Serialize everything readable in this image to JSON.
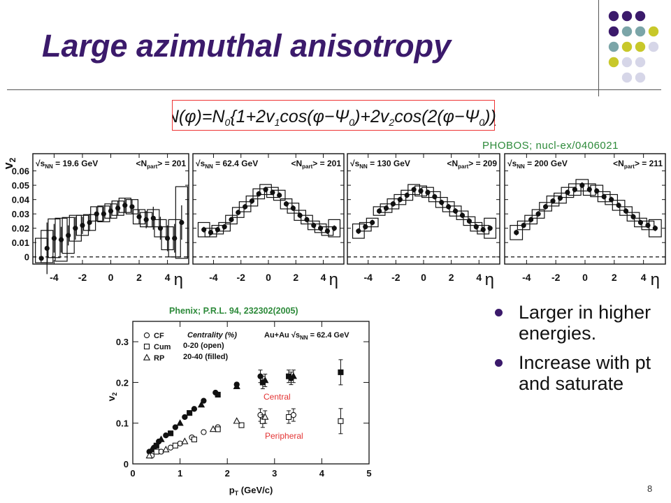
{
  "slide": {
    "title": "Large azimuthal anisotropy",
    "page_number": "8",
    "formula": {
      "parts": [
        "N(φ)=N",
        "0",
        "{1+2v",
        "1",
        "cos(φ−Ψ",
        "0",
        ")+2v",
        "2",
        "cos(2(φ−Ψ",
        "0",
        "))}"
      ]
    },
    "phobos_ref": "PHOBOS; nucl-ex/0406021",
    "phenix_ref": "Phenix; P.R.L. 94, 232302(2005)",
    "bullets": [
      "Larger in higher energies.",
      "Increase with pt and saturate"
    ],
    "colors": {
      "title": "#3b1a6b",
      "ref_green": "#2d8a3a",
      "formula_border": "#ee3333",
      "annotation_red": "#e33333",
      "bullet": "#3b1a6b",
      "deco_purple": "#3b1a6b",
      "deco_teal": "#7ba5a8",
      "deco_yellow": "#c8c82a",
      "deco_lavender": "#d6d6e8"
    }
  },
  "chart_data": [
    {
      "type": "scatter",
      "panel_group": "PHOBOS v2 vs eta",
      "ylabel": "v",
      "ylabel_sub": "2",
      "xlabel": "η",
      "ylim": [
        -0.005,
        0.072
      ],
      "xlim": [
        -5.5,
        5.5
      ],
      "yticks": [
        "0",
        "0.01",
        "0.02",
        "0.03",
        "0.04",
        "0.05",
        "0.06"
      ],
      "xticks": [
        "-4",
        "-2",
        "0",
        "2",
        "4"
      ],
      "panels": [
        {
          "energy_label": "√s",
          "energy_sub": "NN",
          "energy_value": " = 19.6 GeV",
          "npart_label": "<N",
          "npart_sub": "part",
          "npart_value": "> = 201",
          "points": [
            {
              "x": -4.9,
              "y": -0.001,
              "box": 0.028,
              "err": 0.001
            },
            {
              "x": -4.5,
              "y": 0.006,
              "box": 0.025,
              "err": 0.018
            },
            {
              "x": -4.0,
              "y": 0.013,
              "box": 0.027,
              "err": 0.01
            },
            {
              "x": -3.5,
              "y": 0.012,
              "box": 0.03,
              "err": 0.009
            },
            {
              "x": -3.0,
              "y": 0.015,
              "box": 0.025,
              "err": 0.007
            },
            {
              "x": -2.5,
              "y": 0.02,
              "box": 0.018,
              "err": 0.008
            },
            {
              "x": -2.0,
              "y": 0.022,
              "box": 0.014,
              "err": 0.006
            },
            {
              "x": -1.5,
              "y": 0.024,
              "box": 0.011,
              "err": 0.006
            },
            {
              "x": -1.0,
              "y": 0.03,
              "box": 0.01,
              "err": 0.005
            },
            {
              "x": -0.5,
              "y": 0.03,
              "box": 0.011,
              "err": 0.005
            },
            {
              "x": 0.0,
              "y": 0.032,
              "box": 0.01,
              "err": 0.005
            },
            {
              "x": 0.5,
              "y": 0.034,
              "box": 0.01,
              "err": 0.005
            },
            {
              "x": 1.0,
              "y": 0.036,
              "box": 0.01,
              "err": 0.005
            },
            {
              "x": 1.5,
              "y": 0.035,
              "box": 0.01,
              "err": 0.005
            },
            {
              "x": 2.0,
              "y": 0.028,
              "box": 0.01,
              "err": 0.005
            },
            {
              "x": 2.5,
              "y": 0.026,
              "box": 0.01,
              "err": 0.006
            },
            {
              "x": 3.0,
              "y": 0.027,
              "box": 0.012,
              "err": 0.008
            },
            {
              "x": 3.5,
              "y": 0.02,
              "box": 0.012,
              "err": 0.008
            },
            {
              "x": 4.0,
              "y": 0.013,
              "box": 0.016,
              "err": 0.009
            },
            {
              "x": 4.5,
              "y": 0.013,
              "box": 0.026,
              "err": 0.01
            },
            {
              "x": 5.0,
              "y": 0.024,
              "box": 0.05,
              "err": 0.012
            }
          ]
        },
        {
          "energy_label": "√s",
          "energy_sub": "NN",
          "energy_value": " = 62.4 GeV",
          "npart_label": "<N",
          "npart_sub": "part",
          "npart_value": "> = 201",
          "points": [
            {
              "x": -4.7,
              "y": 0.019,
              "box": 0.01,
              "err": 0.002
            },
            {
              "x": -4.2,
              "y": 0.017,
              "box": 0.006,
              "err": 0.002
            },
            {
              "x": -3.7,
              "y": 0.019,
              "box": 0.006,
              "err": 0.002
            },
            {
              "x": -3.2,
              "y": 0.021,
              "box": 0.006,
              "err": 0.002
            },
            {
              "x": -2.7,
              "y": 0.026,
              "box": 0.006,
              "err": 0.002
            },
            {
              "x": -2.2,
              "y": 0.031,
              "box": 0.007,
              "err": 0.002
            },
            {
              "x": -1.7,
              "y": 0.035,
              "box": 0.007,
              "err": 0.002
            },
            {
              "x": -1.2,
              "y": 0.039,
              "box": 0.007,
              "err": 0.002
            },
            {
              "x": -0.7,
              "y": 0.044,
              "box": 0.007,
              "err": 0.002
            },
            {
              "x": -0.2,
              "y": 0.047,
              "box": 0.007,
              "err": 0.002
            },
            {
              "x": 0.3,
              "y": 0.045,
              "box": 0.007,
              "err": 0.002
            },
            {
              "x": 0.8,
              "y": 0.043,
              "box": 0.007,
              "err": 0.002
            },
            {
              "x": 1.3,
              "y": 0.037,
              "box": 0.007,
              "err": 0.002
            },
            {
              "x": 1.8,
              "y": 0.034,
              "box": 0.007,
              "err": 0.002
            },
            {
              "x": 2.3,
              "y": 0.029,
              "box": 0.007,
              "err": 0.002
            },
            {
              "x": 2.8,
              "y": 0.026,
              "box": 0.006,
              "err": 0.002
            },
            {
              "x": 3.3,
              "y": 0.022,
              "box": 0.006,
              "err": 0.002
            },
            {
              "x": 3.8,
              "y": 0.02,
              "box": 0.006,
              "err": 0.002
            },
            {
              "x": 4.3,
              "y": 0.018,
              "box": 0.006,
              "err": 0.002
            },
            {
              "x": 4.8,
              "y": 0.02,
              "box": 0.012,
              "err": 0.002
            }
          ]
        },
        {
          "energy_label": "√s",
          "energy_sub": "NN",
          "energy_value": " = 130 GeV",
          "npart_label": "<N",
          "npart_sub": "part",
          "npart_value": "> = 209",
          "points": [
            {
              "x": -4.7,
              "y": 0.018,
              "box": 0.01,
              "err": 0.002
            },
            {
              "x": -4.2,
              "y": 0.021,
              "box": 0.006,
              "err": 0.002
            },
            {
              "x": -3.7,
              "y": 0.024,
              "box": 0.006,
              "err": 0.002
            },
            {
              "x": -3.2,
              "y": 0.032,
              "box": 0.006,
              "err": 0.002
            },
            {
              "x": -2.7,
              "y": 0.034,
              "box": 0.006,
              "err": 0.002
            },
            {
              "x": -2.2,
              "y": 0.037,
              "box": 0.007,
              "err": 0.002
            },
            {
              "x": -1.7,
              "y": 0.04,
              "box": 0.007,
              "err": 0.002
            },
            {
              "x": -1.2,
              "y": 0.043,
              "box": 0.007,
              "err": 0.002
            },
            {
              "x": -0.7,
              "y": 0.047,
              "box": 0.007,
              "err": 0.002
            },
            {
              "x": -0.2,
              "y": 0.046,
              "box": 0.007,
              "err": 0.002
            },
            {
              "x": 0.3,
              "y": 0.045,
              "box": 0.007,
              "err": 0.002
            },
            {
              "x": 0.8,
              "y": 0.042,
              "box": 0.007,
              "err": 0.002
            },
            {
              "x": 1.3,
              "y": 0.038,
              "box": 0.007,
              "err": 0.002
            },
            {
              "x": 1.8,
              "y": 0.035,
              "box": 0.007,
              "err": 0.002
            },
            {
              "x": 2.3,
              "y": 0.032,
              "box": 0.007,
              "err": 0.002
            },
            {
              "x": 2.8,
              "y": 0.029,
              "box": 0.006,
              "err": 0.002
            },
            {
              "x": 3.3,
              "y": 0.025,
              "box": 0.006,
              "err": 0.002
            },
            {
              "x": 3.8,
              "y": 0.021,
              "box": 0.006,
              "err": 0.002
            },
            {
              "x": 4.3,
              "y": 0.019,
              "box": 0.006,
              "err": 0.002
            },
            {
              "x": 4.8,
              "y": 0.02,
              "box": 0.014,
              "err": 0.002
            }
          ]
        },
        {
          "energy_label": "√s",
          "energy_sub": "NN",
          "energy_value": " = 200 GeV",
          "npart_label": "<N",
          "npart_sub": "part",
          "npart_value": "> = 211",
          "points": [
            {
              "x": -4.7,
              "y": 0.017,
              "box": 0.01,
              "err": 0.002
            },
            {
              "x": -4.2,
              "y": 0.022,
              "box": 0.006,
              "err": 0.002
            },
            {
              "x": -3.7,
              "y": 0.026,
              "box": 0.006,
              "err": 0.002
            },
            {
              "x": -3.2,
              "y": 0.03,
              "box": 0.006,
              "err": 0.002
            },
            {
              "x": -2.7,
              "y": 0.035,
              "box": 0.006,
              "err": 0.002
            },
            {
              "x": -2.2,
              "y": 0.039,
              "box": 0.007,
              "err": 0.002
            },
            {
              "x": -1.7,
              "y": 0.041,
              "box": 0.007,
              "err": 0.002
            },
            {
              "x": -1.2,
              "y": 0.045,
              "box": 0.007,
              "err": 0.002
            },
            {
              "x": -0.7,
              "y": 0.047,
              "box": 0.008,
              "err": 0.002
            },
            {
              "x": -0.2,
              "y": 0.05,
              "box": 0.008,
              "err": 0.002
            },
            {
              "x": 0.3,
              "y": 0.047,
              "box": 0.008,
              "err": 0.002
            },
            {
              "x": 0.8,
              "y": 0.046,
              "box": 0.008,
              "err": 0.002
            },
            {
              "x": 1.3,
              "y": 0.042,
              "box": 0.007,
              "err": 0.002
            },
            {
              "x": 1.8,
              "y": 0.04,
              "box": 0.007,
              "err": 0.002
            },
            {
              "x": 2.3,
              "y": 0.036,
              "box": 0.007,
              "err": 0.002
            },
            {
              "x": 2.8,
              "y": 0.032,
              "box": 0.006,
              "err": 0.002
            },
            {
              "x": 3.3,
              "y": 0.028,
              "box": 0.006,
              "err": 0.002
            },
            {
              "x": 3.8,
              "y": 0.024,
              "box": 0.006,
              "err": 0.002
            },
            {
              "x": 4.3,
              "y": 0.022,
              "box": 0.006,
              "err": 0.002
            },
            {
              "x": 4.8,
              "y": 0.02,
              "box": 0.012,
              "err": 0.002
            }
          ]
        }
      ]
    },
    {
      "type": "scatter",
      "panel_group": "PHENIX v2 vs pT",
      "xlabel": "p",
      "xlabel_sub": "T",
      "xlabel_unit": " (GeV/c)",
      "ylabel": "v",
      "ylabel_sub": "2",
      "xlim": [
        0,
        5
      ],
      "ylim": [
        0,
        0.35
      ],
      "xticks": [
        "0",
        "1",
        "2",
        "3",
        "4",
        "5"
      ],
      "yticks": [
        "0",
        "0.1",
        "0.2",
        "0.3"
      ],
      "legend": {
        "entries": [
          "CF",
          "Cum",
          "RP"
        ],
        "centrality_title": "Centrality (%)",
        "open_label": "0-20   (open)",
        "filled_label": "20-40 (filled)",
        "system": "Au+Au",
        "energy_label": "√s",
        "energy_sub": "NN",
        "energy_value": " = 62.4 GeV"
      },
      "annotations": [
        "Central",
        "Peripheral"
      ],
      "series": [
        {
          "name": "CF",
          "marker": "circle",
          "centrality": "20-40 (filled)",
          "x": [
            0.35,
            0.45,
            0.55,
            0.7,
            0.9,
            1.1,
            1.3,
            1.5,
            1.75,
            2.2,
            2.7,
            3.35
          ],
          "y": [
            0.03,
            0.04,
            0.055,
            0.07,
            0.09,
            0.115,
            0.135,
            0.155,
            0.175,
            0.195,
            0.215,
            0.21
          ]
        },
        {
          "name": "Cum",
          "marker": "square",
          "centrality": "20-40 (filled)",
          "x": [
            0.5,
            0.8,
            1.2,
            1.8,
            2.75,
            3.3,
            4.4
          ],
          "y": [
            0.045,
            0.075,
            0.125,
            0.17,
            0.2,
            0.215,
            0.225
          ]
        },
        {
          "name": "RP",
          "marker": "triangle",
          "centrality": "20-40 (filled)",
          "x": [
            0.4,
            0.6,
            1.0,
            1.45,
            2.2,
            2.8,
            3.4
          ],
          "y": [
            0.035,
            0.06,
            0.1,
            0.145,
            0.19,
            0.205,
            0.215
          ]
        },
        {
          "name": "CF",
          "marker": "circle",
          "centrality": "0-20 (open)",
          "x": [
            0.4,
            0.6,
            0.8,
            1.0,
            1.25,
            1.5,
            1.8,
            2.7,
            3.4
          ],
          "y": [
            0.02,
            0.03,
            0.04,
            0.05,
            0.065,
            0.078,
            0.09,
            0.12,
            0.12
          ]
        },
        {
          "name": "Cum",
          "marker": "square",
          "centrality": "0-20 (open)",
          "x": [
            0.5,
            0.9,
            1.3,
            1.8,
            2.3,
            2.75,
            3.3,
            4.4
          ],
          "y": [
            0.03,
            0.045,
            0.06,
            0.085,
            0.095,
            0.105,
            0.115,
            0.105
          ]
        },
        {
          "name": "RP",
          "marker": "triangle",
          "centrality": "0-20 (open)",
          "x": [
            0.35,
            0.7,
            1.1,
            1.7,
            2.2,
            2.8
          ],
          "y": [
            0.02,
            0.035,
            0.055,
            0.085,
            0.105,
            0.115
          ]
        }
      ]
    }
  ]
}
